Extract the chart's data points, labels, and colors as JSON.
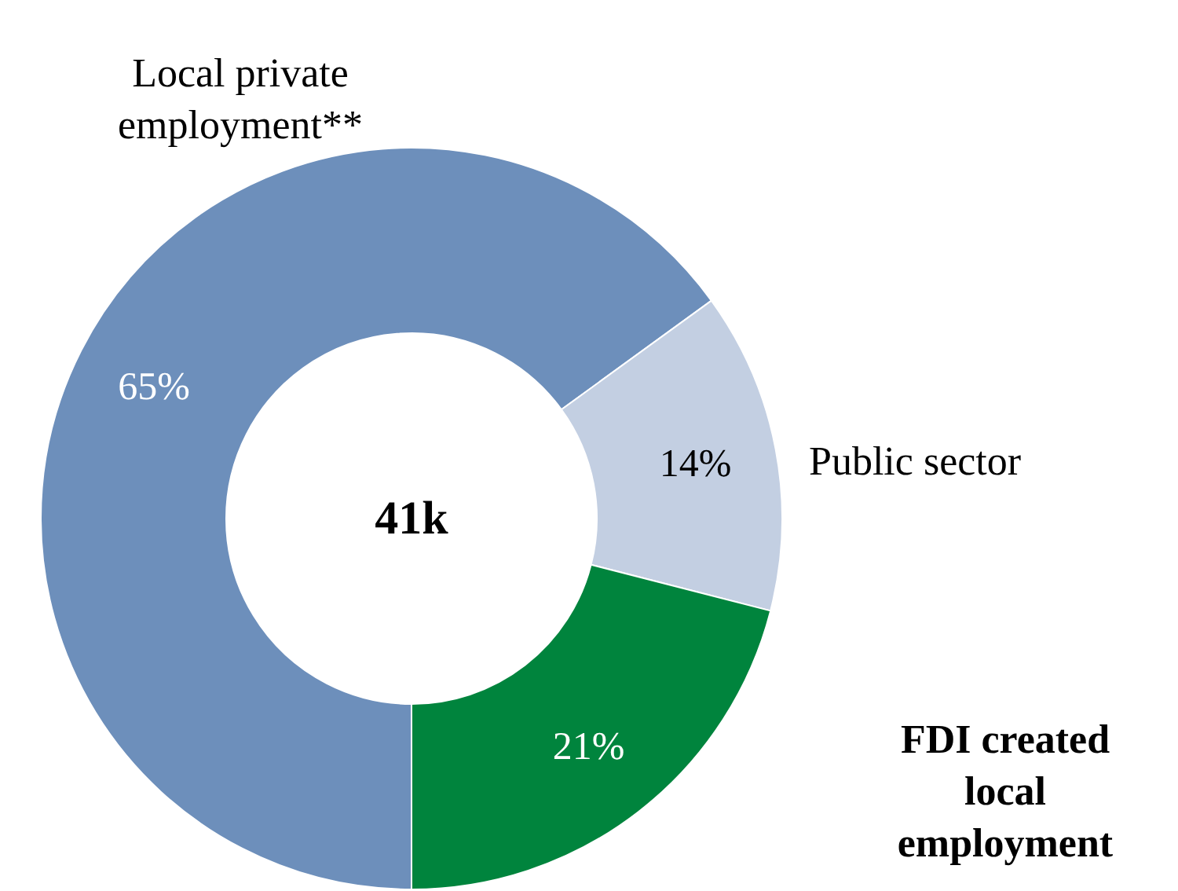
{
  "chart_data": {
    "type": "donut",
    "categories": [
      "Local private employment**",
      "Public sector",
      "FDI created local employment"
    ],
    "values": [
      65,
      14,
      21
    ],
    "colors": [
      "#6d8fbb",
      "#c3cfe2",
      "#00843d"
    ],
    "value_labels": [
      "65%",
      "14%",
      "21%"
    ],
    "annotations": [
      "41k"
    ]
  }
}
